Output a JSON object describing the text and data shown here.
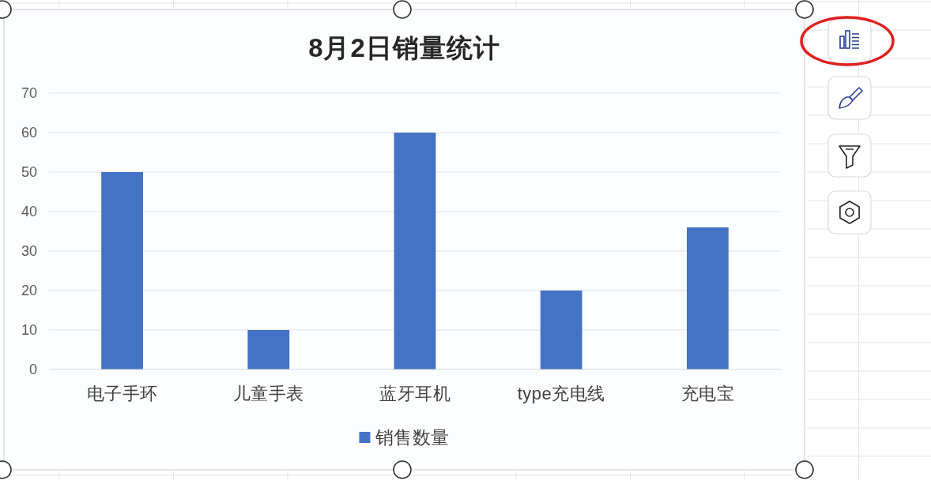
{
  "chart_data": {
    "type": "bar",
    "title": "8月2日销量统计",
    "categories": [
      "电子手环",
      "儿童手表",
      "蓝牙耳机",
      "type充电线",
      "充电宝"
    ],
    "series": [
      {
        "name": "销售数量",
        "color": "#4472c4",
        "values": [
          50,
          10,
          60,
          20,
          36
        ]
      }
    ],
    "ylim": [
      0,
      70
    ],
    "yticks": [
      0,
      10,
      20,
      30,
      40,
      50,
      60,
      70
    ],
    "grid": "y",
    "legend": "bottom"
  }
}
